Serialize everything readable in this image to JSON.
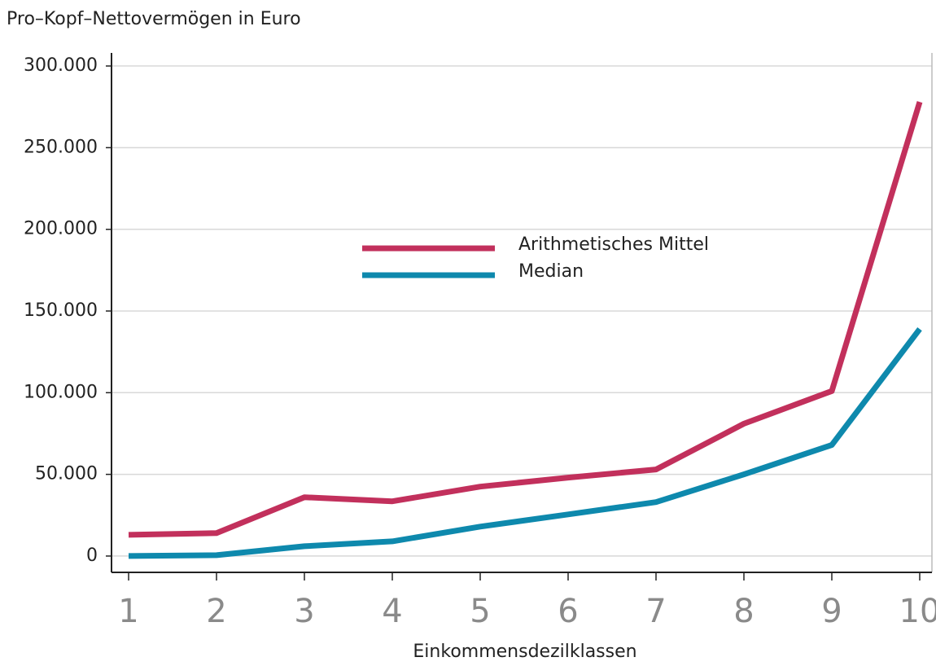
{
  "chart_data": {
    "type": "line",
    "title": "Pro–Kopf–Nettovermögen in Euro",
    "x_label": "Einkommensdezilklassen",
    "categories": [
      "1",
      "2",
      "3",
      "4",
      "5",
      "6",
      "7",
      "8",
      "9",
      "10"
    ],
    "series": [
      {
        "name": "Arithmetisches Mittel",
        "color": "#c2305c",
        "values": [
          13000,
          14000,
          36000,
          33500,
          42500,
          48000,
          53000,
          81000,
          101000,
          278000
        ]
      },
      {
        "name": "Median",
        "color": "#0e89ad",
        "values": [
          0,
          500,
          6000,
          9000,
          18000,
          25500,
          33000,
          50000,
          68000,
          139000
        ]
      }
    ],
    "ylim": [
      -10000,
      308000
    ],
    "yticks": [
      0,
      {
        "value": 50000,
        "label": "50.000"
      },
      {
        "value": 100000,
        "label": "100.000"
      },
      {
        "value": 150000,
        "label": "150.000"
      },
      {
        "value": 200000,
        "label": "200.000"
      },
      {
        "value": 250000,
        "label": "250.000"
      },
      {
        "value": 300000,
        "label": "300.000"
      }
    ],
    "grid": true
  }
}
